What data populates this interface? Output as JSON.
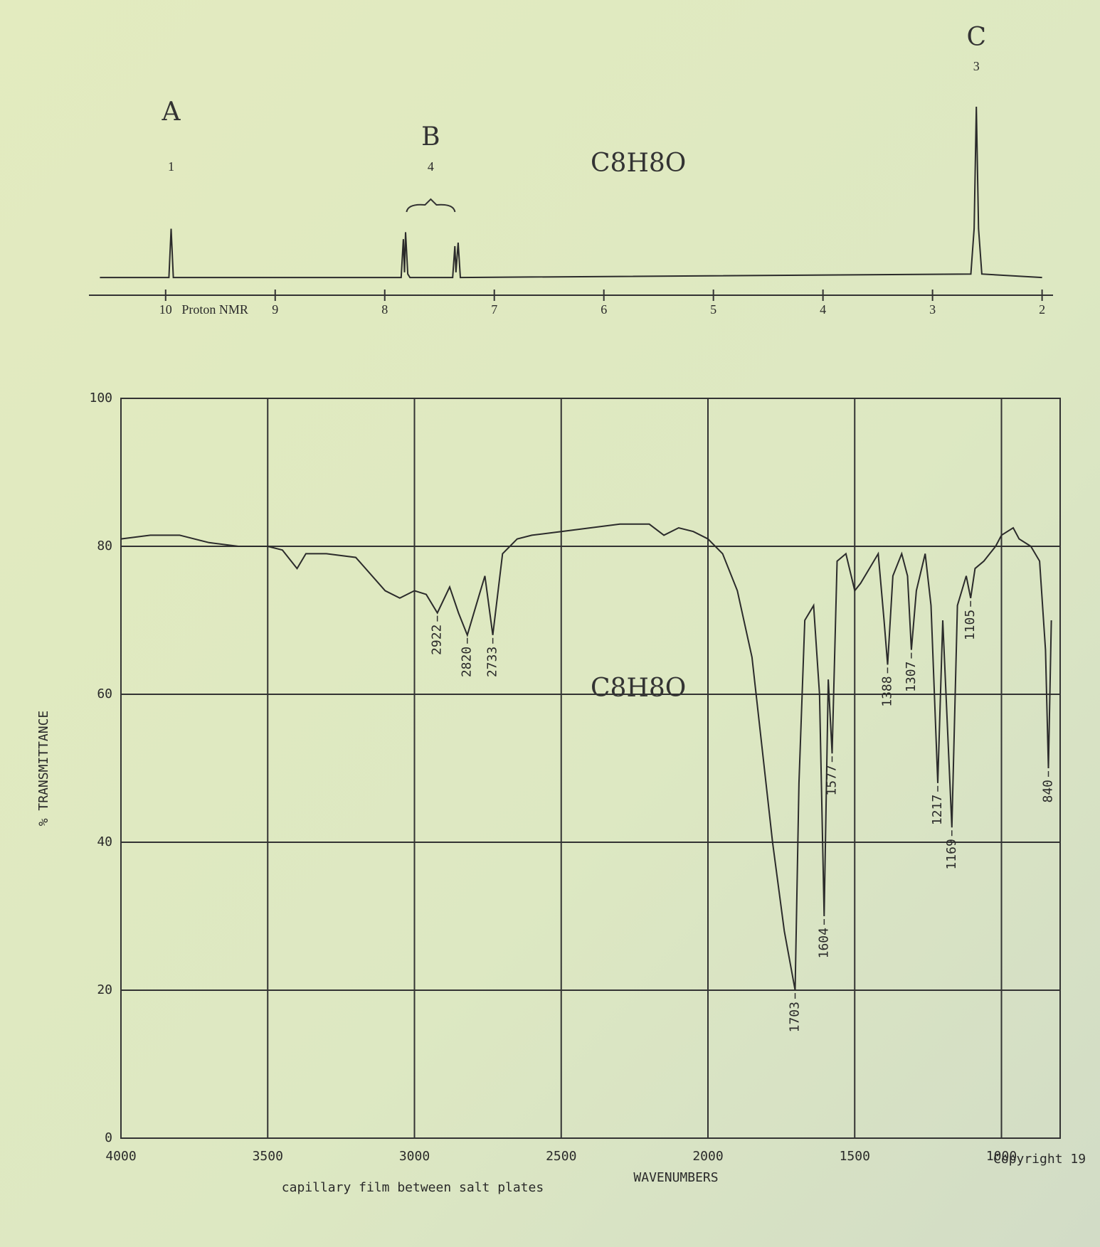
{
  "chart_data": [
    {
      "type": "line",
      "x": [
        10.6,
        9.97,
        9.95,
        9.93,
        7.85,
        7.83,
        7.82,
        7.81,
        7.79,
        7.77,
        7.38,
        7.36,
        7.35,
        7.33,
        7.31,
        2.65,
        2.62,
        2.6,
        2.58,
        2.55,
        2.0
      ],
      "values": [
        0.02,
        0.02,
        0.3,
        0.02,
        0.02,
        0.24,
        0.05,
        0.28,
        0.04,
        0.02,
        0.02,
        0.2,
        0.05,
        0.22,
        0.02,
        0.04,
        0.3,
        1,
        0.3,
        0.04,
        0.02
      ],
      "color": "#2b2b2b",
      "xlim": [
        10.7,
        1.9
      ],
      "xticks": [
        10,
        9,
        8,
        7,
        6,
        5,
        4,
        3,
        2
      ],
      "ylim": [
        0,
        1
      ],
      "x_label": "Proton NMR",
      "formula": "C8H8O",
      "peak_groups": [
        {
          "label": "A",
          "integration": 1,
          "shift": 9.95
        },
        {
          "label": "B",
          "integration": 4,
          "shift": 7.58
        },
        {
          "label": "C",
          "integration": 3,
          "shift": 2.6
        }
      ]
    },
    {
      "type": "line",
      "x": [
        4000,
        3900,
        3800,
        3700,
        3600,
        3500,
        3450,
        3400,
        3370,
        3300,
        3200,
        3100,
        3050,
        3000,
        2960,
        2922,
        2880,
        2850,
        2820,
        2790,
        2760,
        2733,
        2700,
        2650,
        2600,
        2500,
        2400,
        2300,
        2200,
        2150,
        2100,
        2050,
        2000,
        1950,
        1900,
        1850,
        1780,
        1740,
        1703,
        1690,
        1670,
        1640,
        1620,
        1604,
        1590,
        1577,
        1560,
        1530,
        1500,
        1480,
        1450,
        1420,
        1400,
        1388,
        1370,
        1340,
        1320,
        1307,
        1290,
        1260,
        1240,
        1217,
        1200,
        1169,
        1150,
        1120,
        1105,
        1090,
        1060,
        1040,
        1020,
        1000,
        980,
        960,
        940,
        900,
        870,
        850,
        840,
        830
      ],
      "values": [
        81,
        81.5,
        81.5,
        80.5,
        80,
        80,
        79.5,
        77,
        79,
        79,
        78.5,
        74,
        73,
        74,
        73.5,
        71,
        74.5,
        71,
        68,
        72,
        76,
        68,
        79,
        81,
        81.5,
        82,
        82.5,
        83,
        83,
        81.5,
        82.5,
        82,
        81,
        79,
        74,
        65,
        40,
        28,
        20,
        48,
        70,
        72,
        60,
        30,
        62,
        52,
        78,
        79,
        74,
        75,
        77,
        79,
        70,
        64,
        76,
        79,
        76,
        66,
        74,
        79,
        72,
        48,
        70,
        42,
        72,
        76,
        73,
        77,
        78,
        79,
        80,
        81.5,
        82,
        82.5,
        81,
        80,
        78,
        66,
        50,
        70
      ],
      "color": "#2b2b2b",
      "xlim": [
        4000,
        800
      ],
      "xticks": [
        4000,
        3500,
        3000,
        2500,
        2000,
        1500,
        1000
      ],
      "ylim": [
        0,
        100
      ],
      "yticks": [
        0,
        20,
        40,
        60,
        80,
        100
      ],
      "grid": true,
      "x_label": "WAVENUMBERS",
      "y_label": "% TRANSMITTANCE",
      "note": "capillary film between salt plates",
      "copyright": "Copyright 19",
      "formula": "C8H8O",
      "peak_labels": [
        2922,
        2820,
        2733,
        1703,
        1604,
        1577,
        1388,
        1307,
        1217,
        1169,
        1105,
        840
      ]
    }
  ]
}
